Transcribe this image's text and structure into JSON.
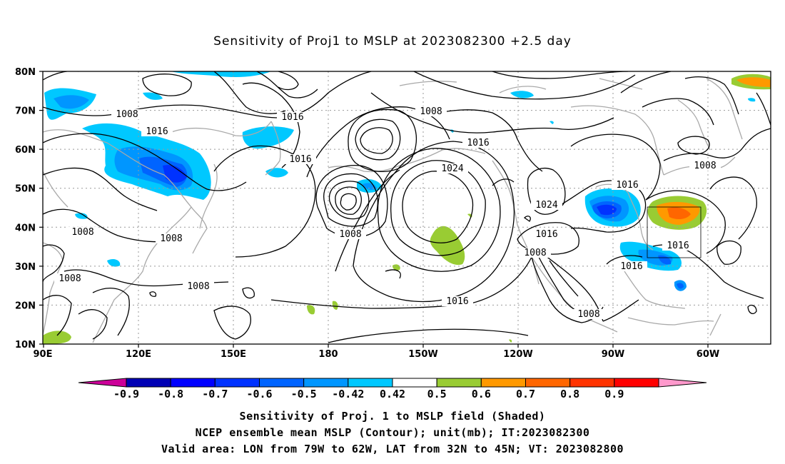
{
  "title": "Sensitivity of Proj1 to MSLP at 2023082300 +2.5 day",
  "map": {
    "lat_labels": [
      "80N",
      "70N",
      "60N",
      "50N",
      "40N",
      "30N",
      "20N",
      "10N"
    ],
    "lon_labels": [
      "90E",
      "120E",
      "150E",
      "180",
      "150W",
      "120W",
      "90W",
      "60W"
    ],
    "contour_labels": [
      {
        "text": "1008"
      },
      {
        "text": "1016"
      },
      {
        "text": "1016"
      },
      {
        "text": "1008"
      },
      {
        "text": "1016"
      },
      {
        "text": "1016"
      },
      {
        "text": "1024"
      },
      {
        "text": "1008"
      },
      {
        "text": "1016"
      },
      {
        "text": "1024"
      },
      {
        "text": "1016"
      },
      {
        "text": "1008"
      },
      {
        "text": "1016"
      },
      {
        "text": "1016"
      },
      {
        "text": "1016"
      },
      {
        "text": "1008"
      },
      {
        "text": "1008"
      },
      {
        "text": "1008"
      },
      {
        "text": "1008"
      },
      {
        "text": "1008"
      }
    ],
    "contour_interval_mb": 4,
    "colors": {
      "contour": "#000000",
      "coast": "#a9a9a9",
      "grid": "#999999"
    },
    "valid_area_box": {
      "lon_west": -79,
      "lon_east": -62,
      "lat_south": 32,
      "lat_north": 45
    }
  },
  "colorbar": {
    "labels": [
      "-0.9",
      "-0.8",
      "-0.7",
      "-0.6",
      "-0.5",
      "-0.42",
      "0.42",
      "0.5",
      "0.6",
      "0.7",
      "0.8",
      "0.9"
    ],
    "colors": [
      "#cc0099",
      "#0000b4",
      "#0000ff",
      "#0032ff",
      "#0064ff",
      "#0096ff",
      "#00c8ff",
      "#ffffff",
      "#99cc33",
      "#ff9900",
      "#ff6600",
      "#ff3300",
      "#ff0000",
      "#ff99cc"
    ]
  },
  "captions": {
    "line1": "Sensitivity of Proj. 1 to MSLP field (Shaded)",
    "line2": "NCEP ensemble mean MSLP (Contour); unit(mb); IT:2023082300",
    "line3": "Valid area: LON from 79W to 62W, LAT from 32N to 45N; VT: 2023082800"
  }
}
